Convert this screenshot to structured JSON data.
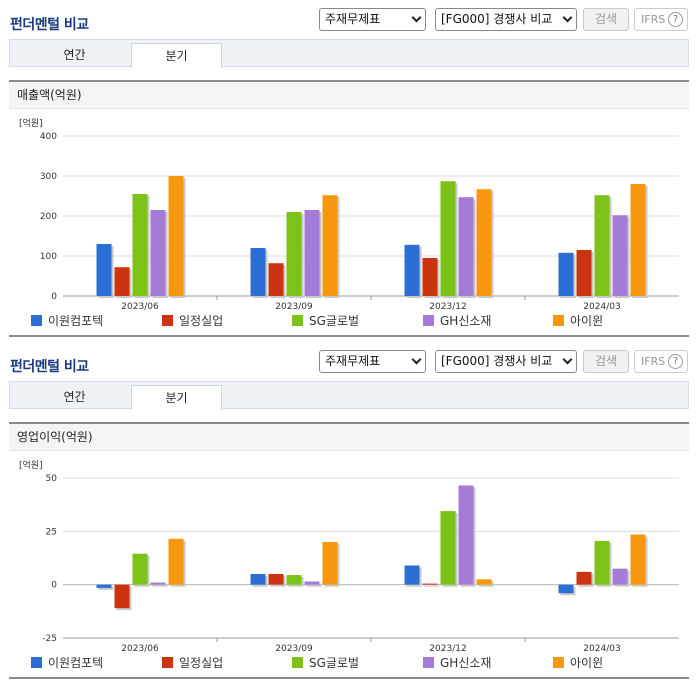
{
  "panels": [
    {
      "title": "펀더멘털 비교",
      "select1": "주재무제표",
      "select2": "[FG000] 경쟁사 비교",
      "search_button": "검색",
      "ifrs_label": "IFRS",
      "help_glyph": "?",
      "tabs": [
        {
          "label": "연간",
          "active": false
        },
        {
          "label": "분기",
          "active": true
        }
      ],
      "section_title": "매출액(억원)"
    },
    {
      "title": "펀더멘털 비교",
      "select1": "주재무제표",
      "select2": "[FG000] 경쟁사 비교",
      "search_button": "검색",
      "ifrs_label": "IFRS",
      "help_glyph": "?",
      "tabs": [
        {
          "label": "연간",
          "active": false
        },
        {
          "label": "분기",
          "active": true
        }
      ],
      "section_title": "영업이익(억원)"
    }
  ],
  "chart_data": [
    {
      "type": "bar",
      "unit_label": "[억원]",
      "categories": [
        "2023/06",
        "2023/09",
        "2023/12",
        "2024/03"
      ],
      "ylim": [
        0,
        400
      ],
      "yticks": [
        0,
        100,
        200,
        300,
        400
      ],
      "grid": true,
      "legend_position": "bottom",
      "series": [
        {
          "name": "이원컴포텍",
          "color": "#2b6fd6",
          "values": [
            130,
            120,
            128,
            108
          ]
        },
        {
          "name": "일정실업",
          "color": "#cc3310",
          "values": [
            72,
            82,
            95,
            115
          ]
        },
        {
          "name": "SG글로벌",
          "color": "#7cc219",
          "values": [
            255,
            210,
            287,
            252
          ]
        },
        {
          "name": "GH신소재",
          "color": "#a57bd8",
          "values": [
            215,
            215,
            247,
            202
          ]
        },
        {
          "name": "아이윈",
          "color": "#f7970f",
          "values": [
            300,
            252,
            267,
            280
          ]
        }
      ]
    },
    {
      "type": "bar",
      "unit_label": "[억원]",
      "categories": [
        "2023/06",
        "2023/09",
        "2023/12",
        "2024/03"
      ],
      "ylim": [
        -25,
        50
      ],
      "yticks": [
        -25,
        0,
        25,
        50
      ],
      "grid": true,
      "legend_position": "bottom",
      "series": [
        {
          "name": "이원컴포텍",
          "color": "#2b6fd6",
          "values": [
            -1.5,
            5,
            9,
            -4
          ]
        },
        {
          "name": "일정실업",
          "color": "#cc3310",
          "values": [
            -11,
            5,
            0.5,
            6
          ]
        },
        {
          "name": "SG글로벌",
          "color": "#7cc219",
          "values": [
            14.5,
            4.5,
            34.5,
            20.5
          ]
        },
        {
          "name": "GH신소재",
          "color": "#a57bd8",
          "values": [
            1,
            1.5,
            46.5,
            7.5
          ]
        },
        {
          "name": "아이윈",
          "color": "#f7970f",
          "values": [
            21.5,
            20,
            2.5,
            23.5
          ]
        }
      ]
    }
  ]
}
